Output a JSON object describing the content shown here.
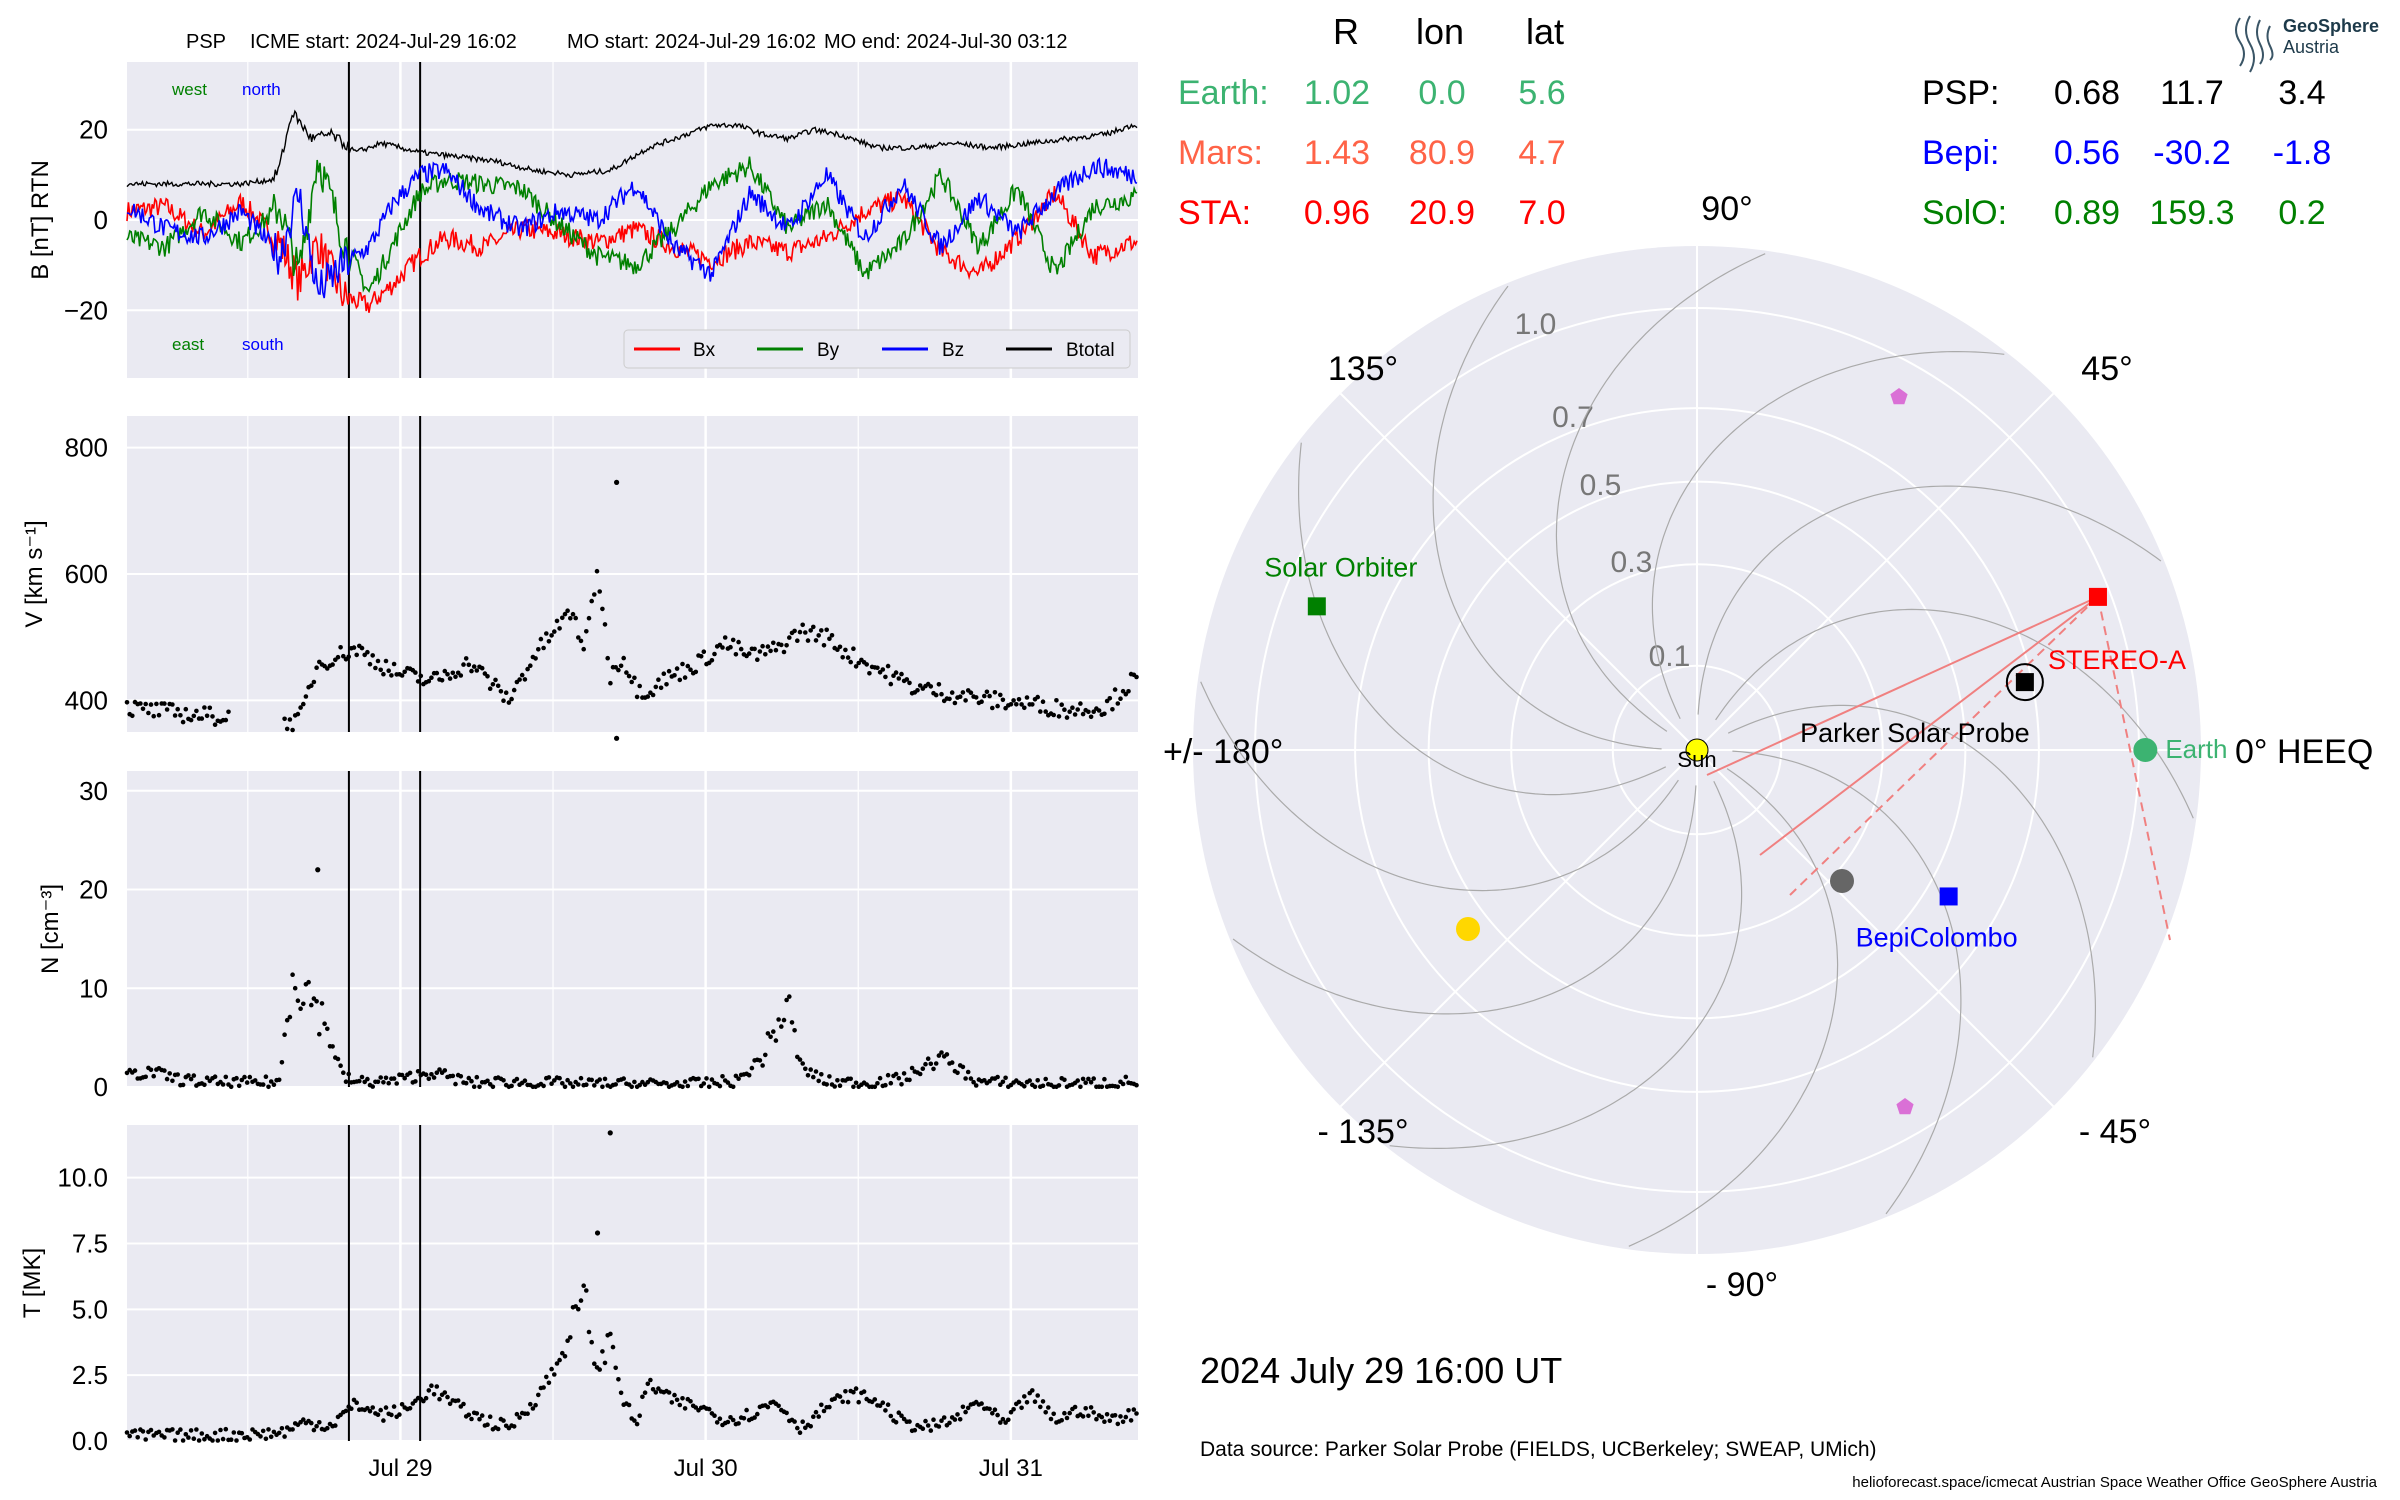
{
  "header": {
    "spacecraft": "PSP",
    "icme_start": "ICME start: 2024-Jul-29 16:02",
    "mo_start": "MO start: 2024-Jul-29 16:02",
    "mo_end": "MO end: 2024-Jul-30 03:12"
  },
  "colors": {
    "panel_bg": "#eaeaf2",
    "grid": "#ffffff",
    "earth": "#3cb371",
    "mars": "#ff6347",
    "sta": "#ff0000",
    "psp": "#000000",
    "bepi": "#0000ff",
    "solo": "#008000",
    "bx": "#ff0000",
    "by": "#008000",
    "bz": "#0000ff",
    "btotal": "#000000"
  },
  "chart_data": [
    {
      "type": "line",
      "panel": "magnetic_field",
      "ylabel": "B [nT] RTN",
      "ylim": [
        -35,
        35
      ],
      "yticks": [
        "20",
        "0",
        "−20"
      ],
      "x_range_days": [
        "2024-07-28 05:00",
        "2024-07-31 16:00"
      ],
      "event_lines": [
        "2024-07-29 16:02",
        "2024-07-30 03:12"
      ],
      "annotations": {
        "west": "west",
        "north": "north",
        "east": "east",
        "south": "south"
      },
      "legend": {
        "position": "lower right",
        "entries": [
          "Bx",
          "By",
          "Bz",
          "Btotal"
        ]
      },
      "series": [
        {
          "name": "Btotal",
          "time_h": [
            0,
            6,
            12,
            18,
            23,
            24,
            26,
            29,
            32,
            36,
            40,
            46,
            52,
            58,
            64,
            70,
            76,
            82,
            88,
            92,
            96,
            100,
            104,
            108,
            112,
            118,
            124,
            130,
            136,
            142,
            148,
            154,
            158
          ],
          "values": [
            8,
            8,
            8,
            8,
            9,
            12,
            24,
            18,
            19,
            15,
            17,
            15,
            14,
            13,
            11,
            10,
            11,
            16,
            19,
            21,
            21,
            19,
            18,
            20,
            19,
            16,
            16,
            17,
            16,
            17,
            18,
            19,
            21
          ]
        },
        {
          "name": "Bx",
          "time_h": [
            0,
            6,
            12,
            18,
            24,
            27,
            30,
            34,
            38,
            42,
            46,
            50,
            56,
            62,
            68,
            74,
            80,
            86,
            92,
            98,
            104,
            110,
            116,
            122,
            128,
            134,
            140,
            146,
            152,
            158
          ],
          "values": [
            2,
            3,
            -3,
            4,
            -5,
            -14,
            -5,
            -17,
            -19,
            -14,
            -8,
            -4,
            -6,
            -2,
            -3,
            -5,
            -2,
            -6,
            -9,
            -5,
            -7,
            -4,
            2,
            5,
            -7,
            -12,
            -4,
            6,
            -8,
            -5
          ]
        },
        {
          "name": "By",
          "time_h": [
            0,
            6,
            12,
            18,
            24,
            27,
            30,
            34,
            38,
            42,
            46,
            50,
            56,
            62,
            68,
            74,
            80,
            86,
            92,
            98,
            104,
            110,
            116,
            122,
            128,
            134,
            140,
            146,
            152,
            158
          ],
          "values": [
            -4,
            -6,
            2,
            -5,
            3,
            -12,
            14,
            -4,
            -16,
            -5,
            6,
            9,
            8,
            7,
            -1,
            -8,
            -10,
            -2,
            8,
            12,
            -2,
            4,
            -12,
            -5,
            10,
            -6,
            7,
            -12,
            3,
            5
          ]
        },
        {
          "name": "Bz",
          "time_h": [
            0,
            6,
            12,
            18,
            24,
            27,
            30,
            34,
            38,
            42,
            46,
            50,
            56,
            62,
            68,
            74,
            80,
            86,
            92,
            98,
            104,
            110,
            116,
            122,
            128,
            134,
            140,
            146,
            152,
            158
          ],
          "values": [
            3,
            -2,
            -4,
            2,
            -8,
            6,
            -16,
            -10,
            -6,
            4,
            10,
            11,
            2,
            -2,
            2,
            0,
            8,
            -6,
            -12,
            6,
            -2,
            10,
            -4,
            8,
            -6,
            5,
            -3,
            6,
            12,
            10
          ]
        }
      ]
    },
    {
      "type": "scatter",
      "panel": "speed",
      "ylabel": "V [km s⁻¹]",
      "ylim": [
        350,
        850
      ],
      "yticks": [
        "800",
        "600",
        "400"
      ],
      "x_range_days": [
        "2024-07-28 05:00",
        "2024-07-31 16:00"
      ],
      "time_h": [
        0,
        6,
        12,
        18,
        21,
        24,
        27,
        30,
        36,
        42,
        48,
        54,
        60,
        64,
        68,
        70,
        72,
        74,
        76,
        78,
        80,
        82,
        84,
        86,
        90,
        94,
        98,
        102,
        106,
        110,
        114,
        118,
        124,
        130,
        136,
        142,
        148,
        154,
        158
      ],
      "values": [
        388,
        382,
        376,
        372,
        398,
        368,
        366,
        458,
        482,
        445,
        430,
        460,
        400,
        470,
        520,
        540,
        480,
        610,
        440,
        470,
        420,
        415,
        430,
        440,
        460,
        490,
        470,
        480,
        510,
        500,
        470,
        450,
        420,
        410,
        400,
        395,
        385,
        390,
        430
      ],
      "outliers": [
        {
          "t": 77,
          "v": 745
        },
        {
          "t": 77,
          "v": 340
        }
      ]
    },
    {
      "type": "scatter",
      "panel": "density",
      "ylabel": "N [cm⁻³]",
      "ylim": [
        0,
        32
      ],
      "yticks": [
        "30",
        "20",
        "10",
        "0"
      ],
      "x_range_days": [
        "2024-07-28 05:00",
        "2024-07-31 16:00"
      ],
      "time_h": [
        0,
        4,
        8,
        12,
        18,
        24,
        26,
        28,
        30,
        32,
        34,
        36,
        42,
        48,
        54,
        60,
        66,
        72,
        78,
        84,
        90,
        96,
        100,
        102,
        104,
        106,
        110,
        116,
        122,
        128,
        134,
        140,
        146,
        152,
        158
      ],
      "values": [
        1.2,
        1.5,
        0.8,
        0.5,
        0.4,
        0.5,
        12,
        10,
        8,
        5,
        1,
        0.5,
        0.6,
        1.5,
        0.4,
        0.5,
        0.4,
        0.3,
        0.3,
        0.3,
        0.3,
        0.6,
        3,
        6,
        8,
        2,
        0.5,
        0.4,
        0.8,
        3,
        0.5,
        0.4,
        0.3,
        0.4,
        0.5
      ],
      "outliers": [
        {
          "t": 30,
          "v": 22
        }
      ]
    },
    {
      "type": "scatter",
      "panel": "temperature",
      "ylabel": "T [MK]",
      "ylim": [
        0,
        12
      ],
      "yticks": [
        "10.0",
        "7.5",
        "5.0",
        "2.5",
        "0.0"
      ],
      "x_range_days": [
        "2024-07-28 05:00",
        "2024-07-31 16:00"
      ],
      "xtick_labels": [
        "Jul 29",
        "Jul 30",
        "Jul 31"
      ],
      "time_h": [
        0,
        6,
        12,
        18,
        24,
        28,
        32,
        36,
        40,
        44,
        48,
        52,
        56,
        60,
        64,
        68,
        70,
        72,
        74,
        76,
        78,
        80,
        82,
        86,
        90,
        94,
        98,
        102,
        106,
        110,
        114,
        118,
        122,
        126,
        130,
        134,
        138,
        142,
        146,
        150,
        154,
        158
      ],
      "values": [
        0.2,
        0.2,
        0.2,
        0.25,
        0.3,
        0.7,
        0.6,
        1.4,
        1.0,
        1.2,
        2.0,
        1.3,
        0.8,
        0.5,
        1.5,
        3.0,
        4.5,
        5.5,
        2.5,
        4.0,
        1.6,
        0.6,
        2.2,
        1.5,
        1.3,
        0.8,
        1.0,
        1.5,
        0.5,
        1.3,
        1.8,
        1.5,
        0.7,
        0.5,
        0.8,
        1.5,
        0.6,
        1.8,
        0.8,
        1.2,
        0.8,
        1.0
      ],
      "outliers": [
        {
          "t": 76,
          "v": 11.7
        },
        {
          "t": 74,
          "v": 7.9
        }
      ]
    },
    {
      "type": "polar",
      "panel": "positions",
      "angle_labels": [
        "90°",
        "45°",
        "0° HEEQ",
        "- 45°",
        "- 90°",
        "- 135°",
        "+/- 180°",
        "135°"
      ],
      "radial_ticks": [
        "1.0",
        "0.7",
        "0.5",
        "0.3",
        "0.1"
      ],
      "radial_max": 1.2,
      "table_headers": [
        "R",
        "lon",
        "lat"
      ],
      "bodies": [
        {
          "name": "Earth",
          "r": 1.02,
          "lon": 0.0,
          "lat": 5.6,
          "r_label": "1.02",
          "lon_label": "0.0",
          "lat_label": "5.6"
        },
        {
          "name": "Mars",
          "r": 1.43,
          "lon": 80.9,
          "lat": 4.7,
          "r_label": "1.43",
          "lon_label": "80.9",
          "lat_label": "4.7"
        },
        {
          "name": "STA",
          "r": 0.96,
          "lon": 20.9,
          "lat": 7.0,
          "r_label": "0.96",
          "lon_label": "20.9",
          "lat_label": "7.0"
        },
        {
          "name": "PSP",
          "r": 0.68,
          "lon": 11.7,
          "lat": 3.4,
          "r_label": "0.68",
          "lon_label": "11.7",
          "lat_label": "3.4"
        },
        {
          "name": "Bepi",
          "r": 0.56,
          "lon": -30.2,
          "lat": -1.8,
          "r_label": "0.56",
          "lon_label": "-30.2",
          "lat_label": "-1.8"
        },
        {
          "name": "SolO",
          "r": 0.89,
          "lon": 159.3,
          "lat": 0.2,
          "r_label": "0.89",
          "lon_label": "159.3",
          "lat_label": "0.2"
        }
      ],
      "plot_labels": {
        "sun": "Sun",
        "earth": "Earth",
        "stereo": "STEREO-A",
        "psp": "Parker Solar Probe",
        "bepi": "BepiColombo",
        "solo": "Solar Orbiter"
      }
    }
  ],
  "footer": {
    "date": "2024 July 29  16:00 UT",
    "source": "Data source: Parker Solar Probe (FIELDS, UCBerkeley; SWEAP, UMich)",
    "credits": "helioforecast.space/icmecat   Austrian Space Weather Office   GeoSphere Austria"
  },
  "logo": {
    "line1": "GeoSphere",
    "line2": "Austria"
  }
}
